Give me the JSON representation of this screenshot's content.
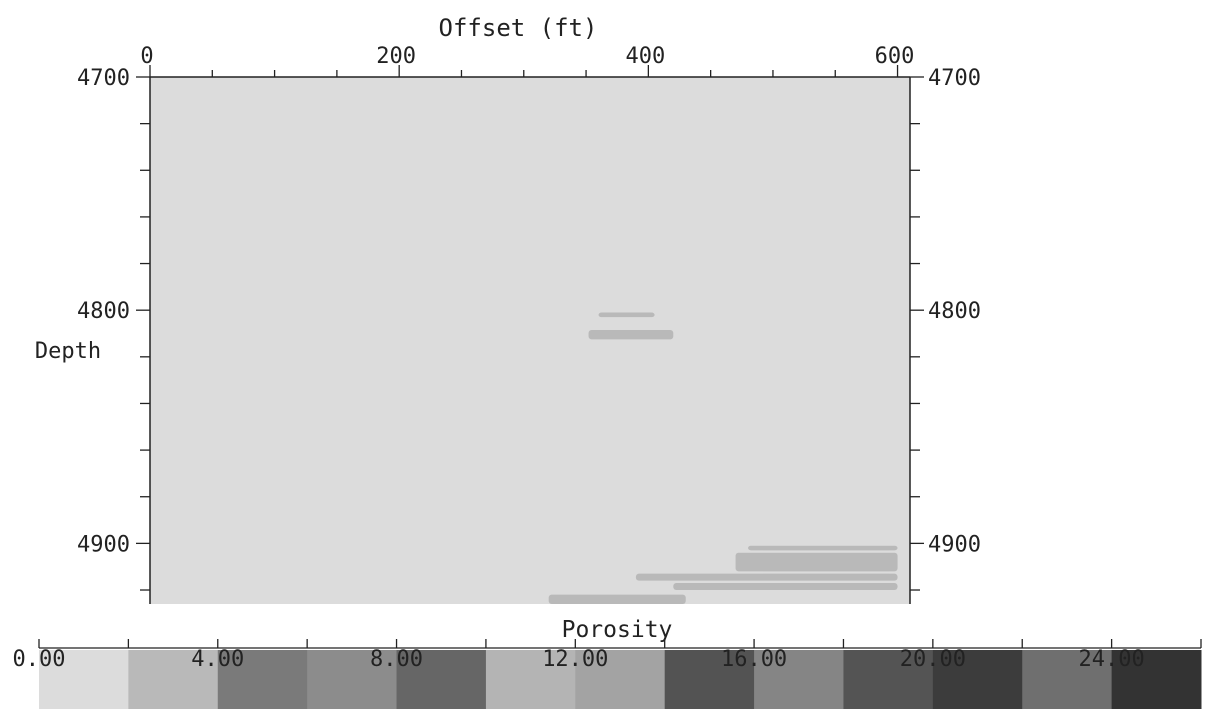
{
  "chart_data": {
    "type": "heatmap",
    "xlabel": "Offset (ft)",
    "ylabel": "Depth",
    "xlim": [
      0,
      610
    ],
    "ylim": [
      4700,
      4926
    ],
    "x_ticks": [
      "0",
      "200",
      "400",
      "600"
    ],
    "y_ticks": [
      "4700",
      "4800",
      "4900"
    ],
    "y_ticks_right": [
      "4700",
      "4800",
      "4900"
    ],
    "background_value": 0.0,
    "anomalies": [
      {
        "x": [
          352,
          420
        ],
        "depth": [
          4808.5,
          4812.5
        ],
        "porosity": 8.0
      },
      {
        "x": [
          360,
          405
        ],
        "depth": [
          4801,
          4803
        ],
        "porosity": 4.0
      },
      {
        "x": [
          480,
          600
        ],
        "depth": [
          4901,
          4903
        ],
        "porosity": 8.0
      },
      {
        "x": [
          470,
          600
        ],
        "depth": [
          4904,
          4912
        ],
        "porosity": 4.0
      },
      {
        "x": [
          390,
          600
        ],
        "depth": [
          4913,
          4916
        ],
        "porosity": 4.0
      },
      {
        "x": [
          420,
          600
        ],
        "depth": [
          4917,
          4920
        ],
        "porosity": 4.0
      },
      {
        "x": [
          320,
          430
        ],
        "depth": [
          4922,
          4926
        ],
        "porosity": 4.0
      }
    ],
    "colorbar": {
      "label": "Porosity",
      "tick_labels": [
        "0.00",
        "4.00",
        "8.00",
        "12.00",
        "16.00",
        "20.00",
        "24.00"
      ],
      "range": [
        0,
        26
      ],
      "colors": [
        "#dcdcdc",
        "#b9b9b9",
        "#7a7a7a",
        "#8c8c8c",
        "#666666",
        "#b4b4b4",
        "#a3a3a3",
        "#535353",
        "#858585",
        "#545454",
        "#3c3c3c",
        "#6f6f6f",
        "#333333"
      ]
    },
    "plot_bg_color": "#dcdcdc",
    "anomaly_color": "#b9b9b9",
    "axis_color": "#222222"
  }
}
